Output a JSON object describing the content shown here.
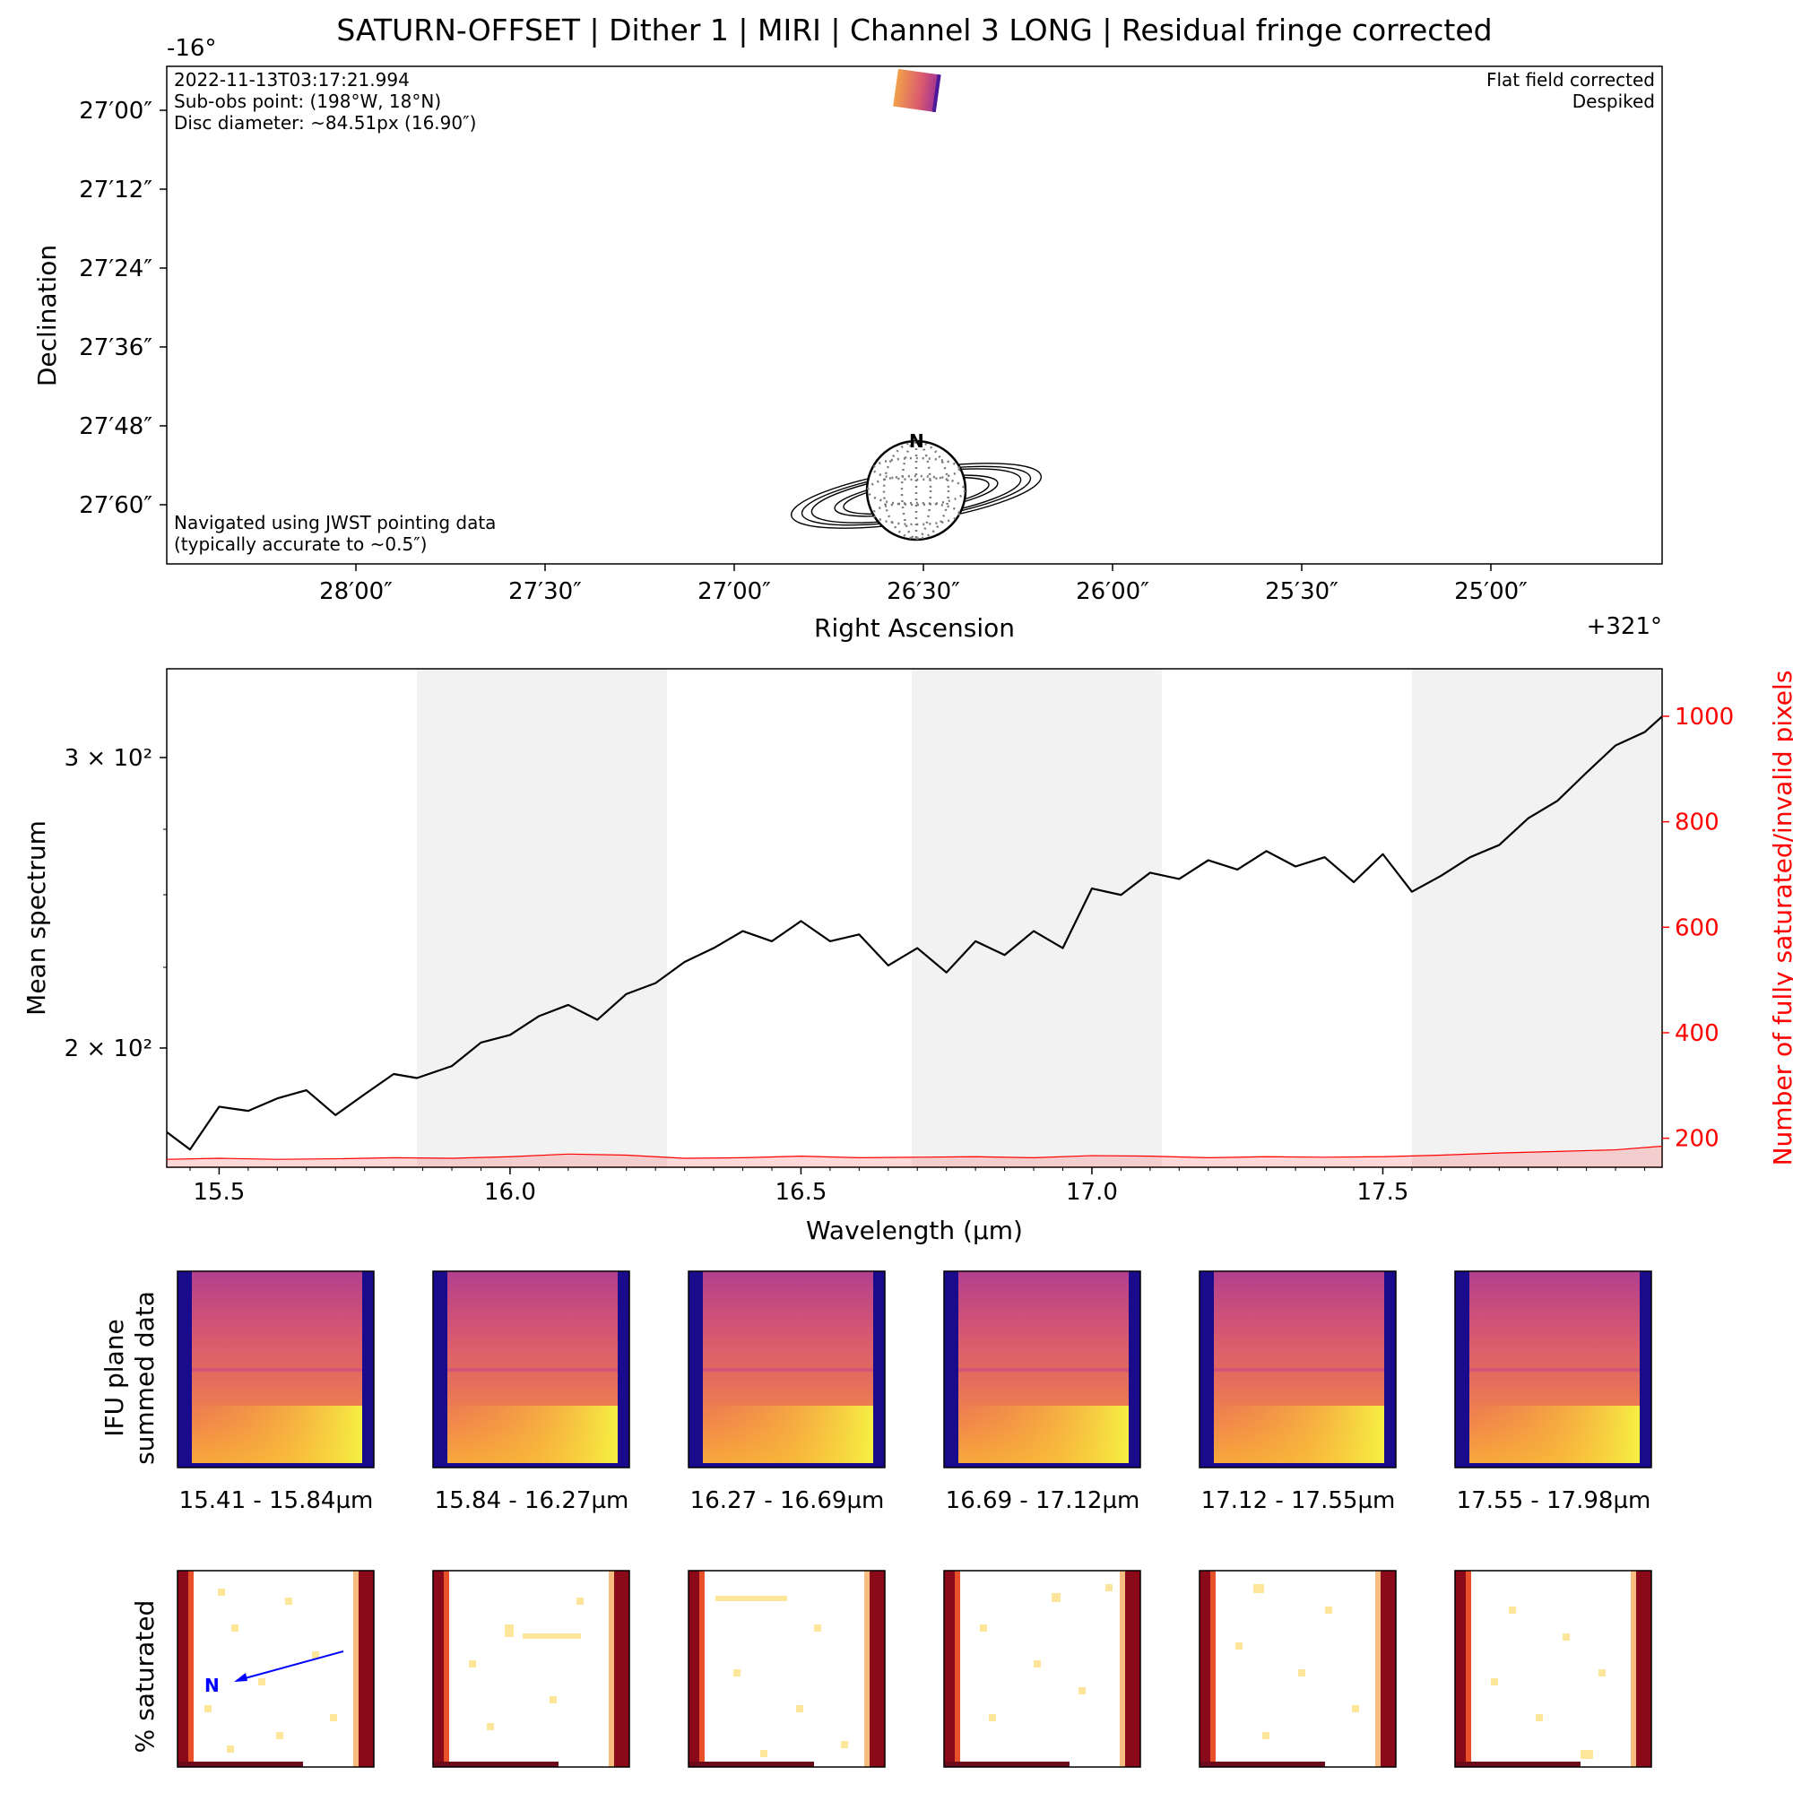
{
  "figure": {
    "title": "SATURN-OFFSET  |  Dither 1  |  MIRI  |  Channel 3 LONG  |  Residual fringe corrected"
  },
  "navigation_panel": {
    "dec_offset_label": "-16°",
    "ra_offset_label": "+321°",
    "xlabel": "Right Ascension",
    "ylabel": "Declination",
    "ra_ticks": [
      "28′00″",
      "27′30″",
      "27′00″",
      "26′30″",
      "26′00″",
      "25′30″",
      "25′00″"
    ],
    "dec_ticks": [
      "27′00″",
      "27′12″",
      "27′24″",
      "27′36″",
      "27′48″",
      "27′60″"
    ],
    "info_lines": [
      "2022-11-13T03:17:21.994",
      "Sub-obs point: (198°W, 18°N)",
      "Disc diameter: ~84.51px (16.90″)"
    ],
    "corrections": [
      "Flat field corrected",
      "Despiked"
    ],
    "nav_note": [
      "Navigated using JWST pointing data",
      "(typically accurate to ~0.5″)"
    ],
    "north_label": "N"
  },
  "chart_data": [
    {
      "type": "line",
      "xlabel": "Wavelength (µm)",
      "ylabel": "Mean spectrum",
      "y2label": "Number of fully saturated/invalid pixels",
      "xlim": [
        15.41,
        17.98
      ],
      "ylim": [
        182,
        335
      ],
      "yscale": "log",
      "y_ticks": [
        "2 × 10²",
        "3 × 10²"
      ],
      "y2lim": [
        145,
        1090
      ],
      "y2_ticks": [
        200,
        400,
        600,
        800,
        1000
      ],
      "x_ticks": [
        15.5,
        16.0,
        16.5,
        17.0,
        17.5
      ],
      "shaded_bands": [
        [
          15.84,
          16.27
        ],
        [
          16.69,
          17.12
        ],
        [
          17.55,
          17.98
        ]
      ],
      "series": [
        {
          "color": "#000000",
          "x": [
            15.41,
            15.45,
            15.5,
            15.55,
            15.6,
            15.65,
            15.7,
            15.75,
            15.8,
            15.84,
            15.9,
            15.95,
            16.0,
            16.05,
            16.1,
            16.15,
            16.2,
            16.25,
            16.3,
            16.35,
            16.4,
            16.45,
            16.5,
            16.55,
            16.6,
            16.65,
            16.7,
            16.75,
            16.8,
            16.85,
            16.9,
            16.95,
            17.0,
            17.05,
            17.1,
            17.15,
            17.2,
            17.25,
            17.3,
            17.35,
            17.4,
            17.45,
            17.5,
            17.55,
            17.6,
            17.65,
            17.7,
            17.75,
            17.8,
            17.85,
            17.9,
            17.95,
            17.98
          ],
          "values": [
            190,
            186,
            196,
            195,
            198,
            200,
            194,
            199,
            204,
            203,
            206,
            212,
            214,
            219,
            222,
            218,
            225,
            228,
            234,
            238,
            243,
            240,
            246,
            240,
            242,
            233,
            238,
            231,
            240,
            236,
            243,
            238,
            256,
            254,
            261,
            259,
            265,
            262,
            268,
            263,
            266,
            258,
            267,
            255,
            260,
            266,
            270,
            279,
            285,
            295,
            305,
            310,
            316
          ]
        },
        {
          "axis": "right",
          "color": "#ff0000",
          "x": [
            15.41,
            15.5,
            15.6,
            15.7,
            15.8,
            15.9,
            16.0,
            16.1,
            16.2,
            16.3,
            16.4,
            16.5,
            16.6,
            16.7,
            16.8,
            16.9,
            17.0,
            17.1,
            17.2,
            17.3,
            17.4,
            17.5,
            17.6,
            17.7,
            17.8,
            17.9,
            17.98
          ],
          "values": [
            160,
            162,
            160,
            161,
            163,
            162,
            165,
            170,
            168,
            162,
            163,
            166,
            163,
            164,
            165,
            163,
            167,
            166,
            163,
            165,
            164,
            165,
            168,
            172,
            175,
            178,
            185
          ]
        }
      ]
    }
  ],
  "ifu_row": {
    "label_lines": [
      "IFU plane",
      "summed data"
    ],
    "wavelength_ranges": [
      "15.41 - 15.84µm",
      "15.84 - 16.27µm",
      "16.27 - 16.69µm",
      "16.69 - 17.12µm",
      "17.12 - 17.55µm",
      "17.55 - 17.98µm"
    ]
  },
  "saturation_row": {
    "label": "% saturated",
    "north_label": "N"
  },
  "colors": {
    "shade": "#f2f2f2",
    "spectrum": "#000000",
    "invalid": "#ff0000",
    "north_arrow": "#0000ff",
    "edge_dark_blue": "#1a0a8c",
    "saturation_dark_red": "#8b0a1a",
    "saturation_light": "#fde59a"
  }
}
